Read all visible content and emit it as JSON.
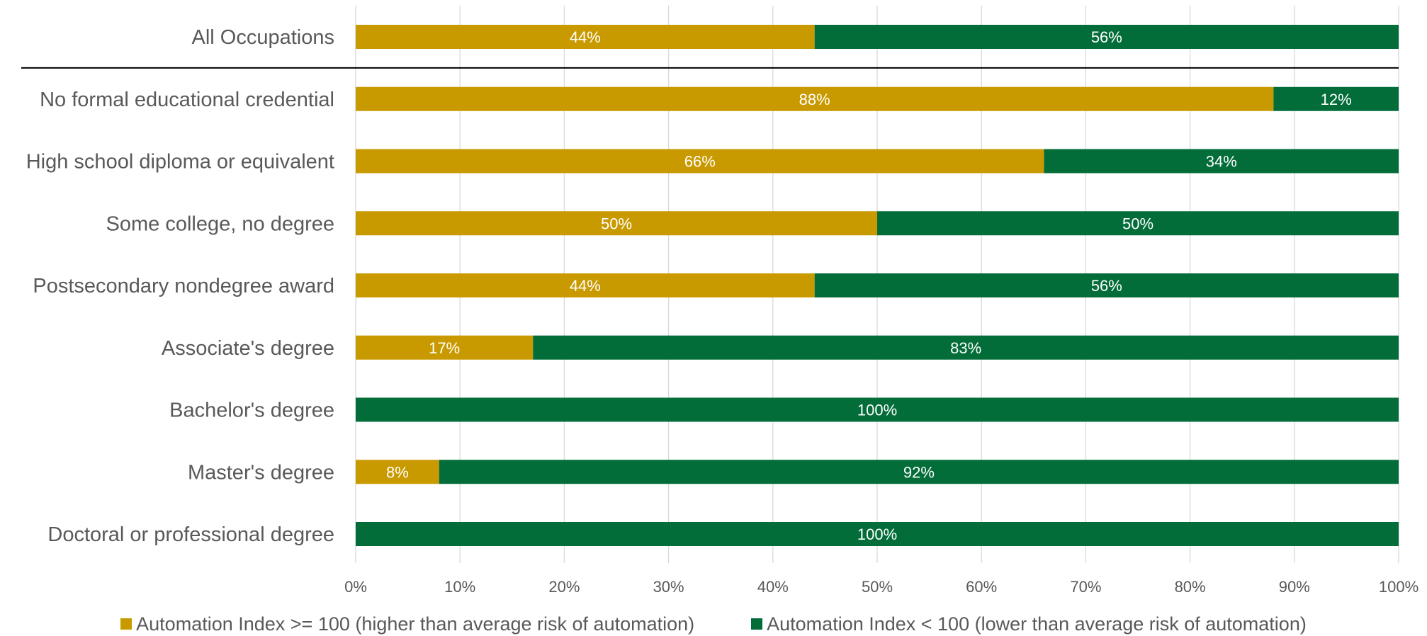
{
  "colors": {
    "series_high": "#C89A00",
    "series_low": "#036D3A",
    "grid": "#D9D9D9",
    "separator": "#000000"
  },
  "chart_data": {
    "type": "bar",
    "orientation": "horizontal",
    "stacked": true,
    "categories": [
      "All Occupations",
      "No formal educational credential",
      "High school diploma or equivalent",
      "Some college, no degree",
      "Postsecondary nondegree award",
      "Associate's degree",
      "Bachelor's degree",
      "Master's degree",
      "Doctoral or professional degree"
    ],
    "series": [
      {
        "name": "Automation Index >= 100 (higher than average risk of automation)",
        "values": [
          44,
          88,
          66,
          50,
          44,
          17,
          0,
          8,
          0
        ],
        "labels": [
          "44%",
          "88%",
          "66%",
          "50%",
          "44%",
          "17%",
          "",
          "8%",
          ""
        ]
      },
      {
        "name": "Automation Index < 100 (lower than average risk of automation)",
        "values": [
          56,
          12,
          34,
          50,
          56,
          83,
          100,
          92,
          100
        ],
        "labels": [
          "56%",
          "12%",
          "34%",
          "50%",
          "56%",
          "83%",
          "100%",
          "92%",
          "100%"
        ]
      }
    ],
    "xticks": [
      "0%",
      "10%",
      "20%",
      "30%",
      "40%",
      "50%",
      "60%",
      "70%",
      "80%",
      "90%",
      "100%"
    ],
    "xlim": [
      0,
      100
    ],
    "grid": "vertical",
    "legend_position": "bottom",
    "separator_after_first_row": true
  },
  "legend": {
    "items": [
      "Automation Index >= 100 (higher than average risk of automation)",
      "Automation Index < 100 (lower than average risk of automation)"
    ]
  }
}
